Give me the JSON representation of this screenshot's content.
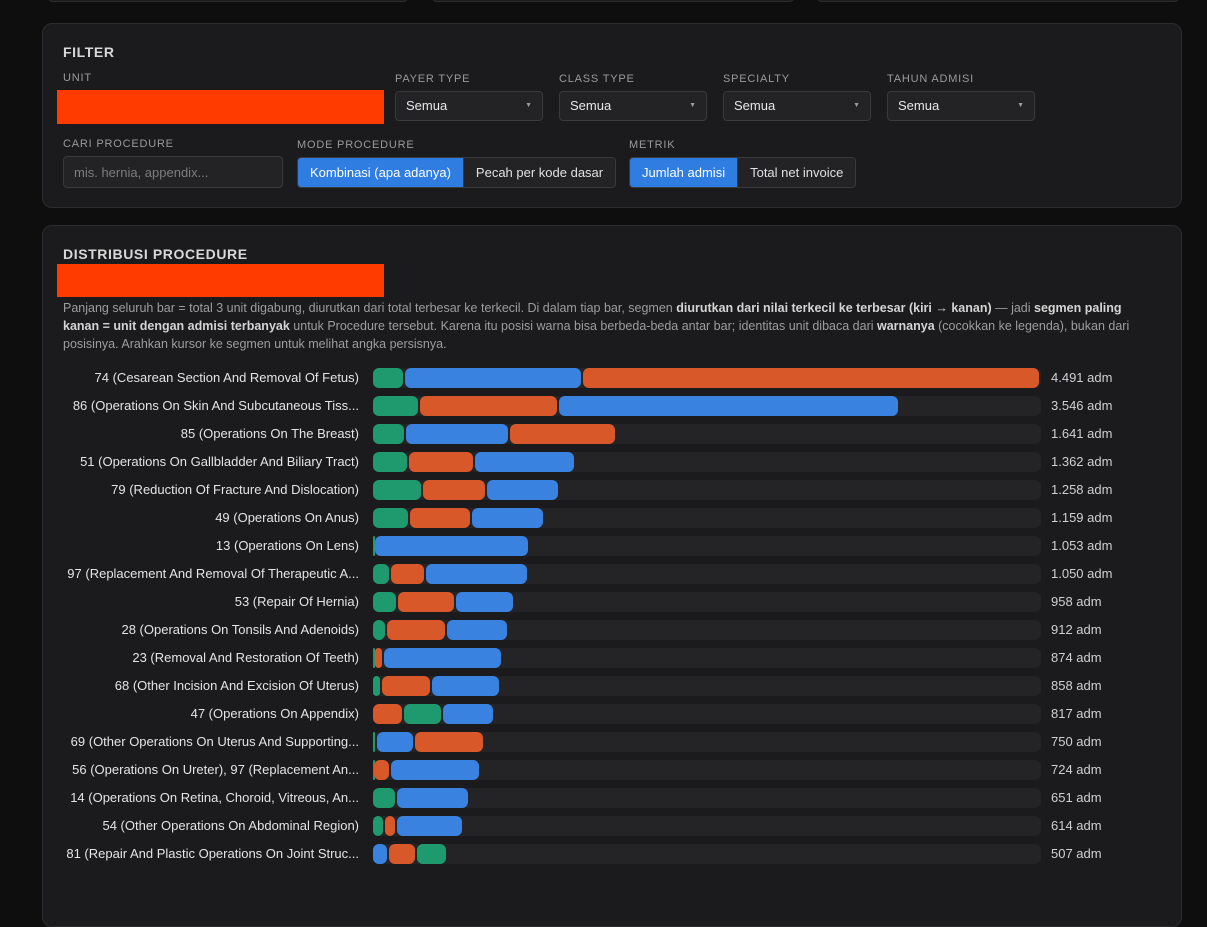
{
  "filter": {
    "title": "FILTER",
    "unit_label": "UNIT",
    "payer_label": "PAYER TYPE",
    "payer_value": "Semua",
    "class_label": "CLASS TYPE",
    "class_value": "Semua",
    "specialty_label": "SPECIALTY",
    "specialty_value": "Semua",
    "tahun_label": "TAHUN ADMISI",
    "tahun_value": "Semua",
    "search_label": "CARI PROCEDURE",
    "search_placeholder": "mis. hernia, appendix...",
    "mode_label": "MODE PROCEDURE",
    "mode_options": [
      "Kombinasi (apa adanya)",
      "Pecah per kode dasar"
    ],
    "metric_label": "METRIK",
    "metric_options": [
      "Jumlah admisi",
      "Total net invoice"
    ]
  },
  "distribution": {
    "title": "DISTRIBUSI PROCEDURE",
    "desc_1": "Panjang seluruh bar = total 3 unit digabung, diurutkan dari total terbesar ke terkecil. Di dalam tiap bar, segmen ",
    "desc_2": "diurutkan dari nilai terkecil ke terbesar (kiri → kanan)",
    "desc_3": " — jadi ",
    "desc_4": "segmen paling kanan = unit dengan admisi terbanyak",
    "desc_5": " untuk Procedure tersebut. Karena itu posisi warna bisa berbeda-beda antar bar; identitas unit dibaca dari ",
    "desc_6": "warnanya",
    "desc_7": " (cocokkan ke legenda), bukan dari posisinya. Arahkan kursor ke segmen untuk melihat angka persisnya."
  },
  "colors": {
    "green": "#1f9a6e",
    "orange": "#d9582a",
    "blue": "#3a82e0"
  },
  "chart_data": {
    "type": "bar",
    "orientation": "horizontal",
    "stacked": true,
    "unit_suffix": "adm",
    "xlim": [
      0,
      4491
    ],
    "categories": [
      "74 (Cesarean Section And Removal Of Fetus)",
      "86 (Operations On Skin And Subcutaneous Tiss...",
      "85 (Operations On The Breast)",
      "51 (Operations On Gallbladder And Biliary Tract)",
      "79 (Reduction Of Fracture And Dislocation)",
      "49 (Operations On Anus)",
      "13 (Operations On Lens)",
      "97 (Replacement And Removal Of Therapeutic A...",
      "53 (Repair Of Hernia)",
      "28 (Operations On Tonsils And Adenoids)",
      "23 (Removal And Restoration Of Teeth)",
      "68 (Other Incision And Excision Of Uterus)",
      "47 (Operations On Appendix)",
      "69 (Other Operations On Uterus And Supporting...",
      "56 (Operations On Ureter), 97 (Replacement An...",
      "14 (Operations On Retina, Choroid, Vitreous, An...",
      "54 (Other Operations On Abdominal Region)",
      "81 (Repair And Plastic Operations On Joint Struc..."
    ],
    "totals": [
      "4.491 adm",
      "3.546 adm",
      "1.641 adm",
      "1.362 adm",
      "1.258 adm",
      "1.159 adm",
      "1.053 adm",
      "1.050 adm",
      "958 adm",
      "912 adm",
      "874 adm",
      "858 adm",
      "817 adm",
      "750 adm",
      "724 adm",
      "651 adm",
      "614 adm",
      "507 adm"
    ],
    "rows": [
      [
        {
          "c": "green",
          "v": 215
        },
        {
          "c": "blue",
          "v": 1197
        },
        {
          "c": "orange",
          "v": 3079
        }
      ],
      [
        {
          "c": "green",
          "v": 315
        },
        {
          "c": "orange",
          "v": 938
        },
        {
          "c": "blue",
          "v": 2293
        }
      ],
      [
        {
          "c": "green",
          "v": 222
        },
        {
          "c": "blue",
          "v": 697
        },
        {
          "c": "orange",
          "v": 722
        }
      ],
      [
        {
          "c": "green",
          "v": 244
        },
        {
          "c": "orange",
          "v": 445
        },
        {
          "c": "blue",
          "v": 673
        }
      ],
      [
        {
          "c": "green",
          "v": 339
        },
        {
          "c": "orange",
          "v": 430
        },
        {
          "c": "blue",
          "v": 489
        }
      ],
      [
        {
          "c": "green",
          "v": 246
        },
        {
          "c": "orange",
          "v": 420
        },
        {
          "c": "blue",
          "v": 493
        }
      ],
      [
        {
          "c": "green",
          "v": 14
        },
        {
          "c": "blue",
          "v": 1039
        }
      ],
      [
        {
          "c": "green",
          "v": 122
        },
        {
          "c": "orange",
          "v": 232
        },
        {
          "c": "blue",
          "v": 696
        }
      ],
      [
        {
          "c": "green",
          "v": 169
        },
        {
          "c": "orange",
          "v": 389
        },
        {
          "c": "blue",
          "v": 400
        }
      ],
      [
        {
          "c": "green",
          "v": 93
        },
        {
          "c": "orange",
          "v": 402
        },
        {
          "c": "blue",
          "v": 417
        }
      ],
      [
        {
          "c": "green",
          "v": 12
        },
        {
          "c": "orange",
          "v": 60
        },
        {
          "c": "blue",
          "v": 802
        }
      ],
      [
        {
          "c": "green",
          "v": 60
        },
        {
          "c": "orange",
          "v": 340
        },
        {
          "c": "blue",
          "v": 458
        }
      ],
      [
        {
          "c": "orange",
          "v": 208
        },
        {
          "c": "green",
          "v": 260
        },
        {
          "c": "blue",
          "v": 349
        }
      ],
      [
        {
          "c": "green",
          "v": 30
        },
        {
          "c": "blue",
          "v": 254
        },
        {
          "c": "orange",
          "v": 466
        }
      ],
      [
        {
          "c": "green",
          "v": 10
        },
        {
          "c": "orange",
          "v": 112
        },
        {
          "c": "blue",
          "v": 602
        }
      ],
      [
        {
          "c": "green",
          "v": 160
        },
        {
          "c": "blue",
          "v": 491
        }
      ],
      [
        {
          "c": "green",
          "v": 79
        },
        {
          "c": "orange",
          "v": 79
        },
        {
          "c": "blue",
          "v": 456
        }
      ],
      [
        {
          "c": "blue",
          "v": 110
        },
        {
          "c": "orange",
          "v": 189
        },
        {
          "c": "green",
          "v": 208
        }
      ]
    ]
  }
}
